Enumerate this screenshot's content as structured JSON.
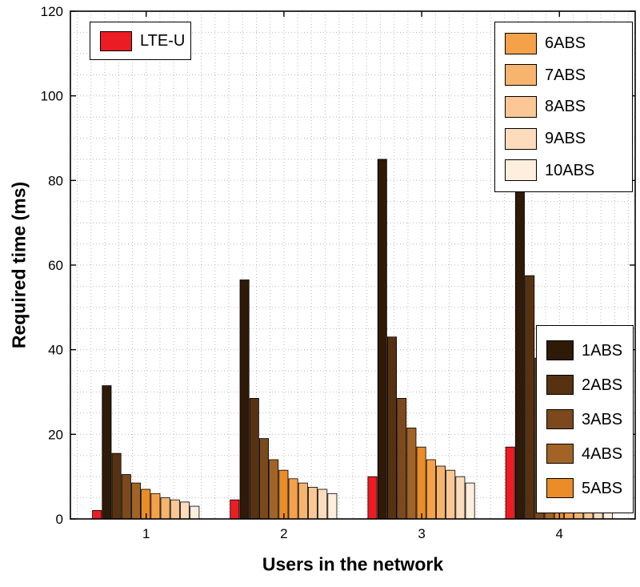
{
  "chart_data": {
    "type": "bar",
    "title": "",
    "xlabel": "Users in the network",
    "ylabel": "Required time (ms)",
    "categories": [
      "1",
      "2",
      "3",
      "4"
    ],
    "ylim": [
      0,
      120
    ],
    "yticks": [
      0,
      20,
      40,
      60,
      80,
      100,
      120
    ],
    "grid": "dotted minor grid, both axes",
    "bar_edge_color": "#000000",
    "series": [
      {
        "name": "LTE-U",
        "color": "#ed1c24",
        "values": [
          2,
          4.5,
          10,
          17
        ]
      },
      {
        "name": "1ABS",
        "color": "#2f1a08",
        "values": [
          31.5,
          56.5,
          85,
          113
        ]
      },
      {
        "name": "2ABS",
        "color": "#573212",
        "values": [
          15.5,
          28.5,
          43,
          57.5
        ]
      },
      {
        "name": "3ABS",
        "color": "#7c491c",
        "values": [
          10.5,
          19,
          28.5,
          38
        ]
      },
      {
        "name": "4ABS",
        "color": "#a26426",
        "values": [
          8.5,
          14,
          21.5,
          28.5
        ]
      },
      {
        "name": "5ABS",
        "color": "#ea8c27",
        "values": [
          7,
          11.5,
          17,
          23
        ]
      },
      {
        "name": "6ABS",
        "color": "#f5a14a",
        "values": [
          6,
          9.5,
          14,
          19
        ]
      },
      {
        "name": "7ABS",
        "color": "#f7b46e",
        "values": [
          5,
          8.5,
          12.5,
          16.5
        ]
      },
      {
        "name": "8ABS",
        "color": "#fac795",
        "values": [
          4.5,
          7.5,
          11.5,
          15
        ]
      },
      {
        "name": "9ABS",
        "color": "#fcdcbc",
        "values": [
          4,
          7,
          10,
          13
        ]
      },
      {
        "name": "10ABS",
        "color": "#fdeedd",
        "values": [
          3,
          6,
          8.5,
          11.5
        ]
      }
    ],
    "legends": [
      {
        "id": "lteu",
        "position": "top-left",
        "entries": [
          "LTE-U"
        ]
      },
      {
        "id": "abs-high",
        "position": "top-right",
        "entries": [
          "6ABS",
          "7ABS",
          "8ABS",
          "9ABS",
          "10ABS"
        ]
      },
      {
        "id": "abs-low",
        "position": "right-middle",
        "entries": [
          "1ABS",
          "2ABS",
          "3ABS",
          "4ABS",
          "5ABS"
        ]
      }
    ]
  }
}
